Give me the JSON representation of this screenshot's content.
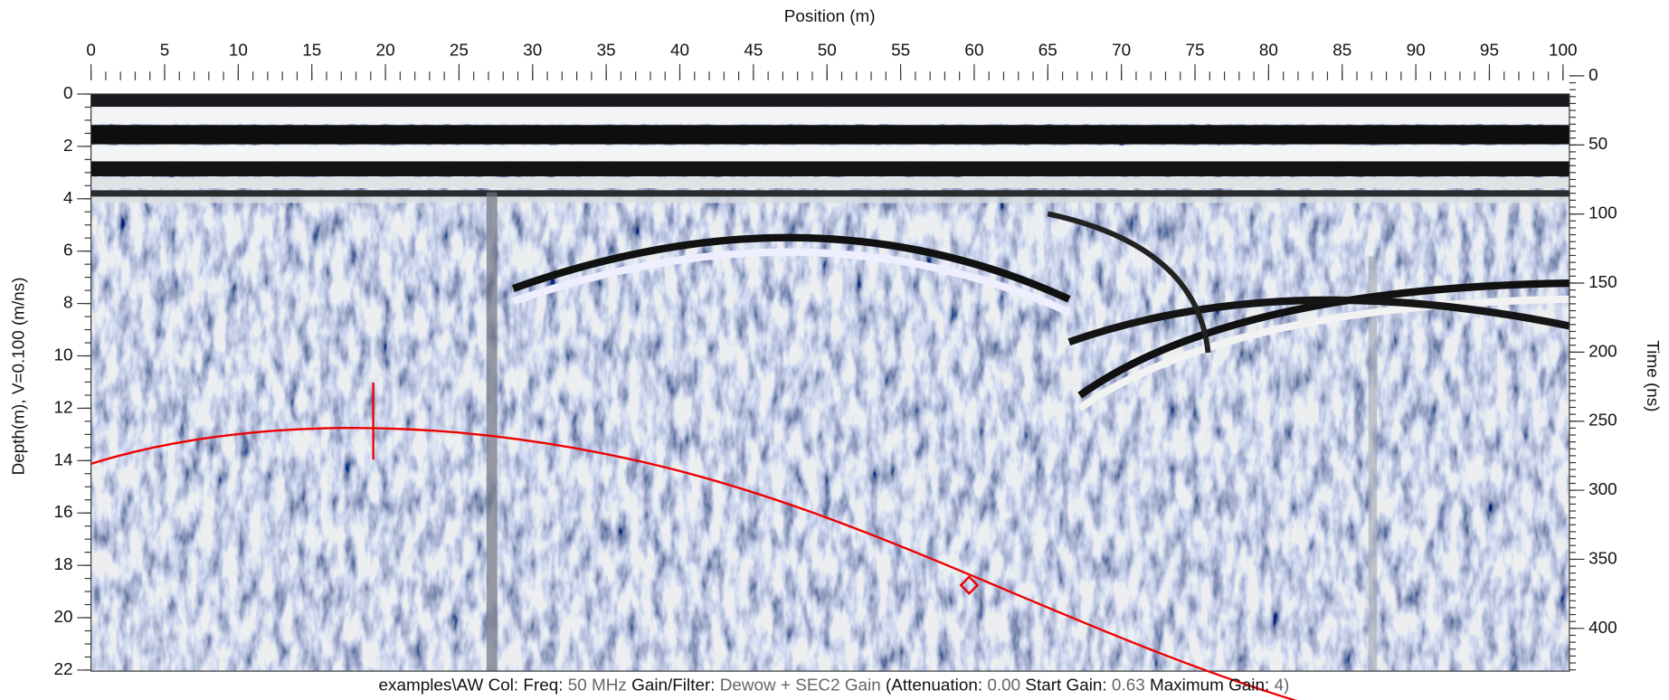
{
  "x_axis": {
    "title": "Position (m)",
    "lim": [
      0,
      100
    ],
    "ticks": [
      0,
      5,
      10,
      15,
      20,
      25,
      30,
      35,
      40,
      45,
      50,
      55,
      60,
      65,
      70,
      75,
      80,
      85,
      90,
      95,
      100
    ]
  },
  "y_axis": {
    "title": "Depth(m), V=0.100 (m/ns)",
    "lim": [
      0,
      22
    ],
    "ticks": [
      0,
      2,
      4,
      6,
      8,
      10,
      12,
      14,
      16,
      18,
      20,
      22
    ]
  },
  "y2_axis": {
    "title": "Time (ns)",
    "ticks": [
      0,
      50,
      100,
      150,
      200,
      250,
      300,
      350,
      400
    ]
  },
  "status": {
    "file": "examples\\AW",
    "col_label": "Col:",
    "freq_label": "Freq:",
    "freq": "50 MHz",
    "filter_label": "Gain/Filter:",
    "filter": "Dewow + SEC2 Gain",
    "attenuation_label": "(Attenuation:",
    "attenuation": "0.00",
    "start_gain_label": "Start Gain:",
    "start_gain": "0.63",
    "max_gain_label": "Maximum Gain:",
    "max_gain": "4)"
  }
}
